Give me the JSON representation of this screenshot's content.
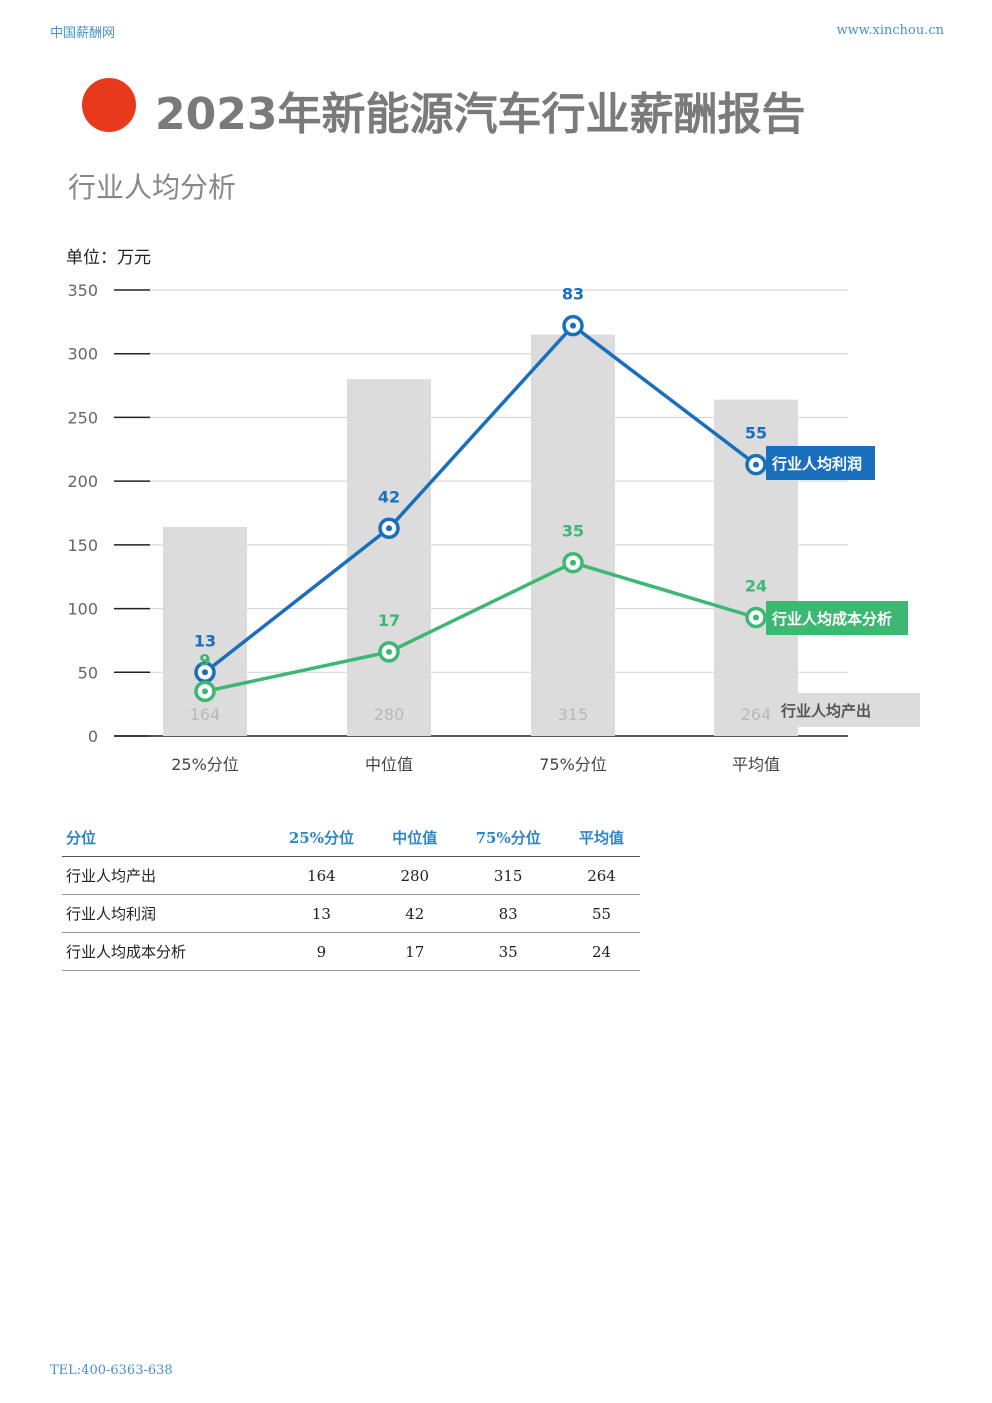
{
  "header": {
    "left": "中国薪酬网",
    "right": "www.xinchou.cn"
  },
  "title": "2023年新能源汽车行业薪酬报告",
  "subtitle": "行业人均分析",
  "unit_label": "单位：万元",
  "colors": {
    "accent": "#e8391d",
    "profit": "#1a6fbd",
    "cost": "#3db873",
    "output": "#dcdcdc"
  },
  "chart_data": {
    "type": "bar+line",
    "categories": [
      "25%分位",
      "中位值",
      "75%分位",
      "平均值"
    ],
    "ylim": [
      0,
      350
    ],
    "yticks": [
      0,
      50,
      100,
      150,
      200,
      250,
      300,
      350
    ],
    "grid": true,
    "bars": {
      "name": "行业人均产出",
      "values": [
        164,
        280,
        315,
        264
      ]
    },
    "lines": [
      {
        "name": "行业人均利润",
        "values": [
          13,
          42,
          83,
          55
        ],
        "plot_values": [
          50,
          163,
          322,
          213
        ],
        "color": "#1a6fbd"
      },
      {
        "name": "行业人均成本分析",
        "values": [
          9,
          17,
          35,
          24
        ],
        "plot_values": [
          35,
          66,
          136,
          93
        ],
        "color": "#3db873"
      }
    ]
  },
  "table": {
    "headers": [
      "分位",
      "25%分位",
      "中位值",
      "75%分位",
      "平均值"
    ],
    "rows": [
      [
        "行业人均产出",
        "164",
        "280",
        "315",
        "264"
      ],
      [
        "行业人均利润",
        "13",
        "42",
        "83",
        "55"
      ],
      [
        "行业人均成本分析",
        "9",
        "17",
        "35",
        "24"
      ]
    ]
  },
  "footer": "TEL:400-6363-638"
}
